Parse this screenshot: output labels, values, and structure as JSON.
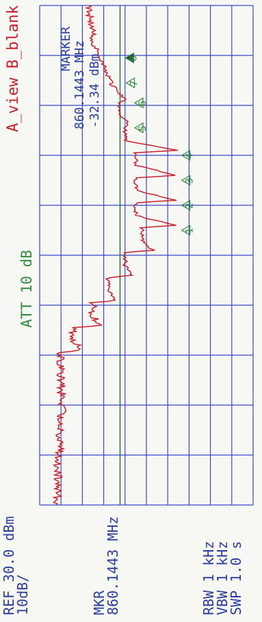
{
  "colors": {
    "grid": "#3a46c8",
    "trace": "#c8202a",
    "text_green": "#2f8a3e",
    "text_blue": "#2a3c9c",
    "marker_line": "#1f6a3a"
  },
  "header": {
    "view_label": "A_view B_blank",
    "marker_title": "MARKER",
    "marker_freq": "860.1443 MHz",
    "marker_level": "-32.34 dBm"
  },
  "attenuation": "ATT 10 dB",
  "ref": {
    "line1": "REF 30.0 dBm",
    "line2": "10dB/"
  },
  "mkr": {
    "line1": "MKR",
    "line2": "860.1443 MHz"
  },
  "settings": {
    "rbw": "RBW 1 kHz",
    "vbw": "VBW 1 kHz",
    "swp": "SWP 1.0 s"
  },
  "chart_data": {
    "type": "line",
    "grid": true,
    "ref_level_dbm": 30.0,
    "scale_db_per_div": 10,
    "amplitude_divisions": 10,
    "frequency_divisions": 10,
    "ylim": [
      -70,
      30
    ],
    "marker_line_dbm": -32.34,
    "series": [
      {
        "x_div": [
          0,
          0.4,
          0.8,
          1.2,
          1.6,
          2.0,
          2.4,
          2.8,
          3.05,
          3.1,
          3.3,
          3.55,
          3.6,
          3.8,
          4.05,
          4.1,
          4.3,
          4.55,
          4.6,
          4.8,
          5.05,
          5.1,
          5.3,
          5.55,
          5.6,
          5.8,
          6.05,
          6.1,
          6.3,
          6.55,
          6.6,
          6.8,
          7.05,
          7.1,
          7.3,
          7.55,
          7.6,
          7.8,
          8.05,
          8.1,
          8.4,
          8.8,
          9.2,
          9.6,
          10.0
        ],
        "level_dbm": [
          -62,
          -61,
          -62,
          -60,
          -61,
          -59,
          -60,
          -60,
          -60,
          -50,
          -54,
          -54,
          -42,
          -45,
          -45,
          -35,
          -38,
          -38,
          -27,
          -30,
          -30,
          -17,
          -22,
          -22,
          -6,
          -25,
          -25,
          -6,
          -25,
          -25,
          -6,
          -25,
          -25,
          -6,
          -30,
          -30,
          -28,
          -32,
          -33,
          -29,
          -36,
          -40,
          -44,
          -46,
          -47
        ]
      }
    ],
    "markers": [
      {
        "label": "1",
        "level_dbm": -6
      },
      {
        "label": "2",
        "level_dbm": -6
      },
      {
        "label": "3",
        "level_dbm": -6
      },
      {
        "label": "4",
        "level_dbm": -6
      },
      {
        "label": "5",
        "level_dbm": -28
      },
      {
        "label": "6",
        "level_dbm": -28
      },
      {
        "label": "7",
        "level_dbm": -32
      },
      {
        "label": "8",
        "level_dbm": -32.34
      }
    ]
  }
}
